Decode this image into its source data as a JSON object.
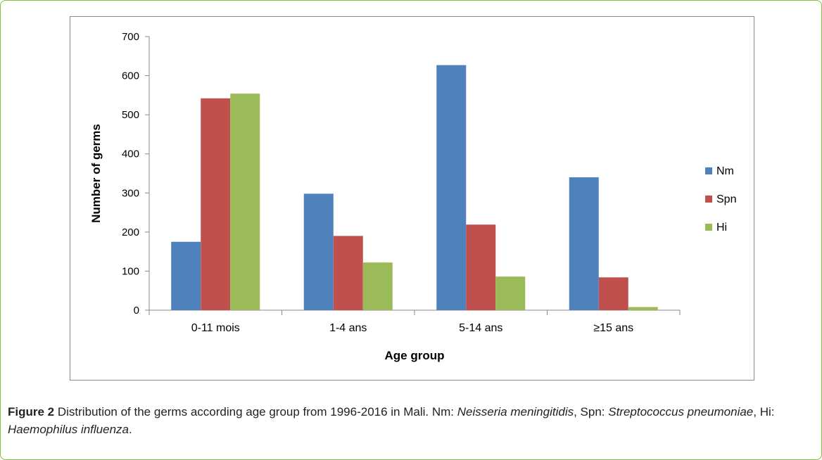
{
  "chart_data": {
    "type": "bar",
    "categories": [
      "0-11 mois",
      "1-4 ans",
      "5-14 ans",
      "≥15 ans"
    ],
    "series": [
      {
        "name": "Nm",
        "color": "#4f81bd",
        "values": [
          175,
          298,
          627,
          340
        ]
      },
      {
        "name": "Spn",
        "color": "#c0504d",
        "values": [
          542,
          190,
          219,
          84
        ]
      },
      {
        "name": "Hi",
        "color": "#9bbb59",
        "values": [
          554,
          122,
          86,
          8
        ]
      }
    ],
    "yticks": [
      "0",
      "100",
      "200",
      "300",
      "400",
      "500",
      "600",
      "700"
    ],
    "ylim": [
      0,
      700
    ],
    "xlabel": "Age group",
    "ylabel": "Number of germs",
    "legend_position": "right",
    "grid": false
  },
  "caption": {
    "figure_label": "Figure 2",
    "text_1": " Distribution of the germs according age group from 1996-2016 in Mali. Nm: ",
    "nm_species": "Neisseria meningitidis",
    "text_2": ", Spn: ",
    "spn_species": "Streptococcus pneumoniae",
    "text_3": ", Hi: ",
    "hi_species": "Haemophilus influenza",
    "text_4": "."
  }
}
